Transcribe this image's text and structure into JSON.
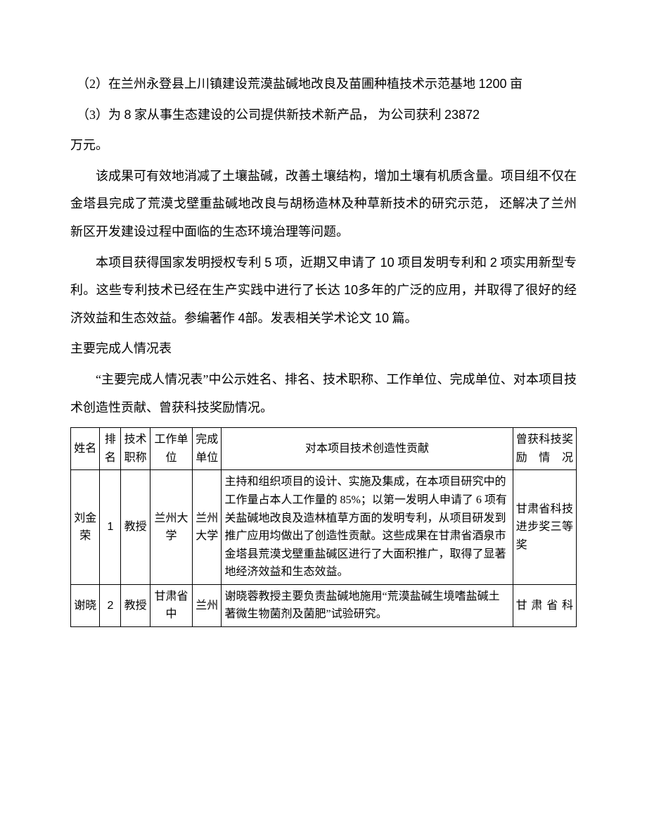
{
  "paragraphs": {
    "p1_a": "（2）在兰州永登县上川镇建设荒漠盐碱地改良及苗圃种植技术示范基地 ",
    "p1_num": "1200",
    "p1_b": " 亩",
    "p2_a": "（3）为 ",
    "p2_num1": "8",
    "p2_b": " 家从事生态建设的公司提供新技术新产品，    为公司获利  ",
    "p2_num2": "23872",
    "p2_c": "万元。",
    "p3": "该成果可有效地消减了土壤盐碱，改善土壤结构，增加土壤有机质含量。项目组不仅在金塔县完成了荒漠戈壁重盐碱地改良与胡杨造林及种草新技术的研究示范，  还解决了兰州新区开发建设过程中面临的生态环境治理等问题。",
    "p4_a": "本项目获得国家发明授权专利    ",
    "p4_num1": "5",
    "p4_b": " 项，近期又申请了  ",
    "p4_num2": "10",
    "p4_c": " 项目发明专利和 ",
    "p4_num3": "2",
    "p4_d": " 项实用新型专利。这些专利技术已经在生产实践中进行了长达       ",
    "p4_num4": "10",
    "p4_e": "多年的广泛的应用，并取得了很好的经济效益和生态效益。参编著作      ",
    "p4_num5": "4",
    "p4_f": "部。发表相关学术论文   ",
    "p4_num6": "10",
    "p4_g": " 篇。",
    "p5": "主要完成人情况表",
    "p6": "“主要完成人情况表”中公示姓名、排名、技术职称、工作单位、完成单位、对本项目技术创造性贡献、曾获科技奖励情况。"
  },
  "table": {
    "headers": {
      "name": "姓名",
      "rank": "排名",
      "title": "技术职称",
      "work_unit": "工作单位",
      "done_unit": "完成单位",
      "contrib": "对本项目技术创造性贡献",
      "award": "曾获科技奖励情况"
    },
    "rows": [
      {
        "name": "刘金荣",
        "rank": "1",
        "title": "教授",
        "work_unit": "兰州大学",
        "done_unit": "兰州大学",
        "contrib": "主持和组织项目的设计、实施及集成，在本项目研究中的工作量占本人工作量的 85%；以第一发明人申请了 6 项有关盐碱地改良及造林植草方面的发明专利，从项目研发到推广应用均做出了创造性贡献。这些成果在甘肃省酒泉市金塔县荒漠戈壁重盐碱区进行了大面积推广，取得了显著地经济效益和生态效益。",
        "award": "甘肃省科技进步奖三等奖"
      },
      {
        "name": "谢晓",
        "rank": "2",
        "title": "教授",
        "work_unit": "甘肃省中",
        "done_unit": "兰州",
        "contrib": "谢晓蓉教授主要负责盐碱地施用“荒漠盐碱生境嗜盐碱土著微生物菌剂及菌肥”试验研究。",
        "award": "甘肃省科"
      }
    ]
  },
  "style": {
    "font_size_body": 18,
    "font_size_table": 16,
    "line_height_body": 2.2,
    "text_color": "#000000",
    "background_color": "#ffffff",
    "border_color": "#000000"
  }
}
